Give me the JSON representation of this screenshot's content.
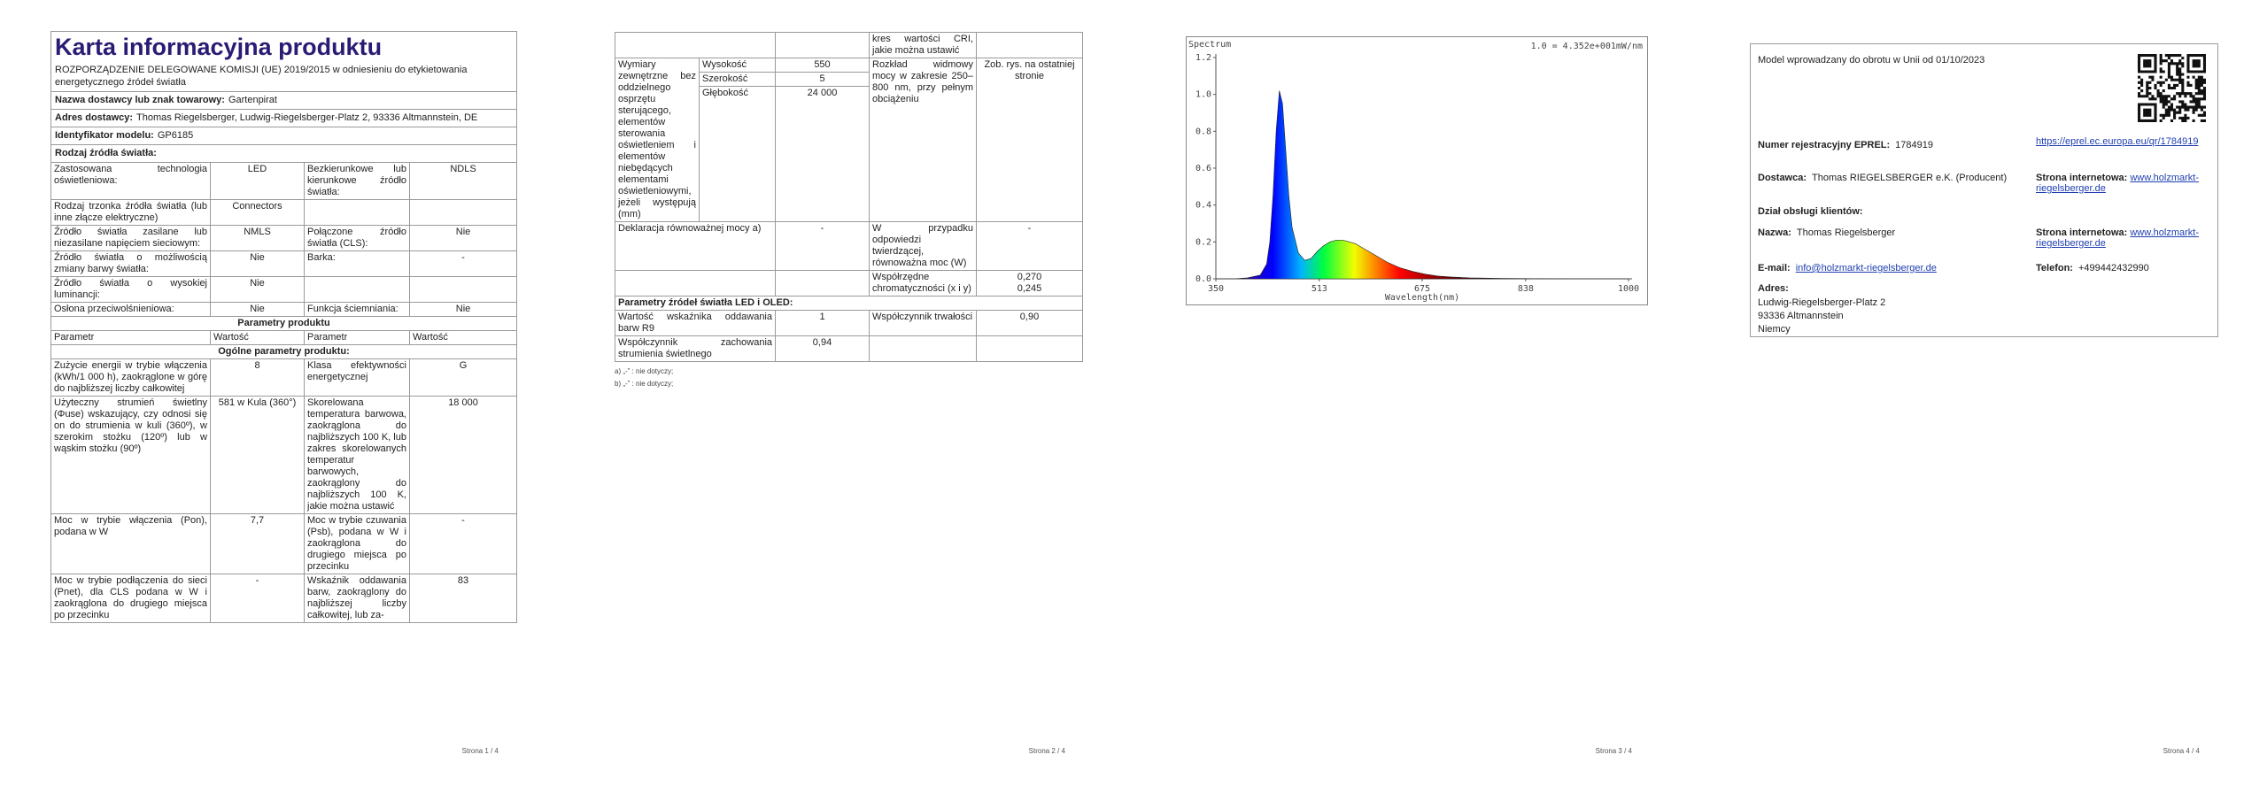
{
  "page1": {
    "title": "Karta informacyjna produktu",
    "regulation": "ROZPORZĄDZENIE DELEGOWANE KOMISJI (UE) 2019/2015 w odniesieniu do etykietowania energetycznego źródeł światła",
    "info": [
      {
        "label": "Nazwa dostawcy lub znak towarowy:",
        "value": "Gartenpirat"
      },
      {
        "label": "Adres dostawcy:",
        "value": "Thomas Riegelsberger, Ludwig-Riegelsberger-Platz 2, 93336 Altmannstein, DE"
      },
      {
        "label": "Identyfikator modelu:",
        "value": "GP6185"
      },
      {
        "label": "Rodzaj źródła światła:"
      }
    ],
    "type_rows": [
      [
        "Zastosowana technologia oświetleniowa:",
        "LED",
        "Bezkierunkowe lub kierunkowe źródło światła:",
        "NDLS"
      ],
      [
        "Rodzaj trzonka źródła światła (lub inne złącze elektryczne)",
        "Connectors",
        null,
        null
      ],
      [
        "Źródło światła zasilane lub niezasilane napięciem sieciowym:",
        "NMLS",
        "Połączone źródło światła (CLS):",
        "Nie"
      ],
      [
        "Źródło światła o możliwością zmiany barwy światła:",
        "Nie",
        "Barka:",
        "-"
      ],
      [
        "Źródło światła o wysokiej luminancji:",
        "Nie",
        null,
        null
      ],
      [
        "Osłona przeciwolśnieniowa:",
        "Nie",
        "Funkcja ściemniania:",
        "Nie"
      ]
    ],
    "params_title": "Parametry produktu",
    "params_header": [
      "Parametr",
      "Wartość",
      "Parametr",
      "Wartość"
    ],
    "general_title": "Ogólne parametry produktu:",
    "general_rows": [
      [
        "Zużycie energii w trybie włączenia (kWh/1 000 h), zaokrąglone w górę do najbliższej liczby całkowitej",
        "8",
        "Klasa efektywności energetycznej",
        "G"
      ],
      [
        "Użyteczny strumień świetlny (Φuse) wskazujący, czy odnosi się on do strumienia w kuli (360º), w szerokim stożku (120º) lub w wąskim stożku (90º)",
        "581 w Kula (360°)",
        "Skorelowana temperatura barwowa, zaokrąglona do najbliższych 100 K, lub zakres skorelowanych temperatur barwowych, zaokrąglony do najbliższych 100 K, jakie można ustawić",
        "18 000"
      ],
      [
        "Moc w trybie włączenia (Pon), podana w W",
        "7,7",
        "Moc w trybie czuwania (Psb), podana w W i zaokrąglona do drugiego miejsca po przecinku",
        "-"
      ],
      [
        "Moc w trybie podłączenia do sieci (Pnet), dla CLS podana w W i zaokrąglona do drugiego miejsca po przecinku",
        "-",
        "Wskaźnik oddawania barw, zaokrąglony do najbliższej liczby całkowitej, lub za-",
        "83"
      ]
    ]
  },
  "page2": {
    "top_row": [
      null,
      null,
      "kres wartości CRI, jakie można ustawić",
      null
    ],
    "dimensions": {
      "label": "Wymiary zewnętrzne bez oddzielnego osprzętu sterującego, elementów sterowania oświetleniem i elementów niebędących elementami oświetleniowymi, jeżeli występują (mm)",
      "items": [
        {
          "name": "Wysokość",
          "value": "550"
        },
        {
          "name": "Szerokość",
          "value": "5"
        },
        {
          "name": "Głębokość",
          "value": "24 000"
        }
      ],
      "spectral_label": "Rozkład widmowy mocy w zakresie 250–800 nm, przy pełnym obciążeniu",
      "spectral_value": "Zob. rys. na ostatniej stronie"
    },
    "rows": [
      [
        "Deklaracja równoważnej mocy a)",
        "-",
        "W przypadku odpowiedzi twierdzącej, równoważna moc (W)",
        "-"
      ],
      [
        null,
        null,
        "Współrzędne chromatyczności (x i y)",
        [
          "0,270",
          "0,245"
        ]
      ]
    ],
    "led_title": "Parametry źródeł światła LED i OLED:",
    "led_rows": [
      [
        "Wartość wskaźnika oddawania barw R9",
        "1",
        "Współczynnik trwałości",
        "0,90"
      ],
      [
        "Współczynnik zachowania strumienia świetlnego",
        "0,94",
        null,
        null
      ]
    ],
    "footnotes": [
      "a) „-” : nie dotyczy;",
      "b) „-” : nie dotyczy;"
    ]
  },
  "page4": {
    "intro": "Model wprowadzany do obrotu w Unii od 01/10/2023",
    "eprel": {
      "label": "Numer rejestracyjny EPREL:",
      "value": "1784919",
      "link": "https://eprel.ec.europa.eu/qr/1784919"
    },
    "supplier": {
      "label": "Dostawca:",
      "value": "Thomas RIEGELSBERGER e.K. (Producent)",
      "web_label": "Strona internetowa:",
      "web": "www.holzmarkt-riegelsberger.de"
    },
    "service_title": "Dział obsługi klientów:",
    "contact": {
      "label": "Nazwa:",
      "value": "Thomas Riegelsberger",
      "web_label": "Strona internetowa:",
      "web": "www.holzmarkt-riegelsberger.de"
    },
    "email": {
      "label": "E-mail:",
      "value": "info@holzmarkt-riegelsberger.de",
      "phone_label": "Telefon:",
      "phone": "+499442432990"
    },
    "address": {
      "label": "Adres:",
      "lines": [
        "Ludwig-Riegelsberger-Platz 2",
        "93336 Altmannstein",
        "Niemcy"
      ]
    }
  },
  "footers": [
    "Strona 1 / 4",
    "Strona 2 / 4",
    "Strona 3 / 4",
    "Strona 4 / 4"
  ],
  "chart_data": {
    "type": "area",
    "title": "Spectrum",
    "annotation": "1.0 = 4.352e+001mW/nm",
    "x_label": "Wavelength(nm)",
    "x": [
      350,
      380,
      400,
      420,
      430,
      435,
      440,
      445,
      450,
      455,
      460,
      465,
      470,
      480,
      490,
      500,
      510,
      520,
      530,
      540,
      550,
      560,
      570,
      580,
      590,
      600,
      620,
      640,
      660,
      680,
      700,
      720,
      750,
      800,
      900,
      1000
    ],
    "values": [
      0,
      0,
      0.005,
      0.02,
      0.08,
      0.2,
      0.45,
      0.8,
      1.02,
      0.95,
      0.7,
      0.45,
      0.28,
      0.14,
      0.1,
      0.11,
      0.15,
      0.18,
      0.2,
      0.21,
      0.21,
      0.2,
      0.19,
      0.17,
      0.15,
      0.13,
      0.09,
      0.06,
      0.04,
      0.025,
      0.015,
      0.01,
      0.005,
      0.002,
      0,
      0
    ],
    "xlim": [
      350,
      1000
    ],
    "ylim": [
      0,
      1.2
    ],
    "xticks": [
      350,
      513,
      675,
      838,
      1000
    ],
    "yticks": [
      {
        "value": 0,
        "label": "0.0"
      },
      {
        "value": 0.2,
        "label": "0.2"
      },
      {
        "value": 0.4,
        "label": "0.4"
      },
      {
        "value": 0.6,
        "label": "0.6"
      },
      {
        "value": 0.8,
        "label": "0.8"
      },
      {
        "value": 1,
        "label": "1.0"
      },
      {
        "value": 1.2,
        "label": "1.2"
      }
    ]
  }
}
